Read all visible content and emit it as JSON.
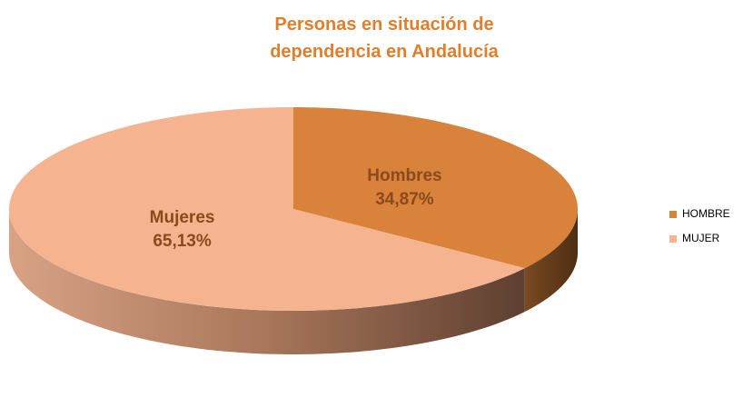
{
  "chart_data": {
    "type": "pie3d",
    "title": "Personas en situación de dependencia en Andalucía",
    "categories": [
      "HOMBRE",
      "MUJER"
    ],
    "slice_labels": [
      "Hombres",
      "Mujeres"
    ],
    "values": [
      34.87,
      65.13
    ],
    "value_labels": [
      "34,87%",
      "65,13%"
    ],
    "colors": [
      "#d9823b",
      "#f5b48f"
    ],
    "legend": "right"
  }
}
